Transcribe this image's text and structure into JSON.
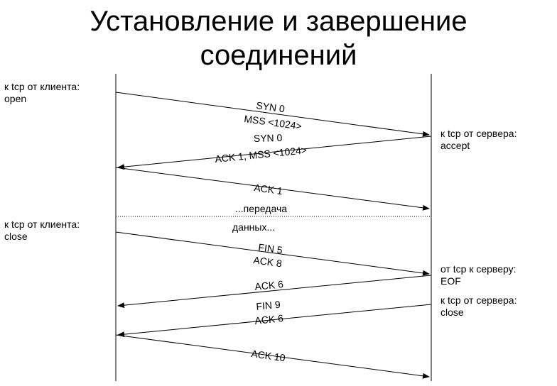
{
  "title": {
    "line1": "Установление и завершение",
    "line2": "соединений"
  },
  "labels": {
    "client_open": [
      "к tcp от клиента:",
      "open"
    ],
    "server_accept": [
      "к tcp от сервера:",
      "accept"
    ],
    "client_close": [
      "к tcp от клиента:",
      "close"
    ],
    "server_eof": [
      "от tcp к серверу:",
      "EOF"
    ],
    "server_close": [
      "к tcp от сервера:",
      "close"
    ]
  },
  "messages": {
    "syn0": "SYN 0",
    "mss_client": "MSS <1024>",
    "syn0_server": "SYN 0",
    "ack1_mss": "ACK 1, MSS <1024>",
    "ack1": "ACK 1",
    "transfer_1": "...передача",
    "transfer_2": "данных...",
    "fin5": "FIN 5",
    "ack8": "ACK 8",
    "ack6_a": "ACK 6",
    "fin9": "FIN 9",
    "ack6_b": "ACK 6",
    "ack10": "ACK 10"
  }
}
